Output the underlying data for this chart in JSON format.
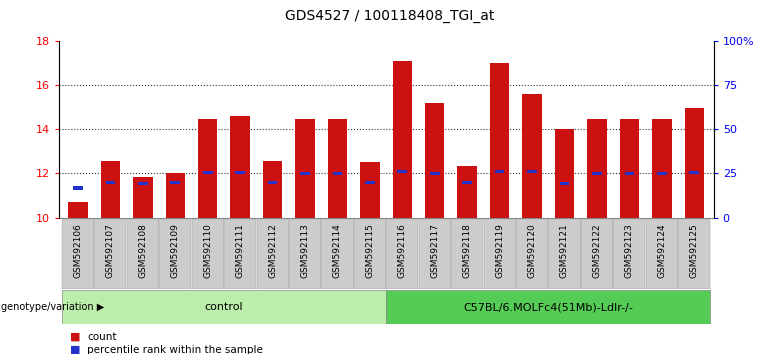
{
  "title": "GDS4527 / 100118408_TGI_at",
  "samples": [
    "GSM592106",
    "GSM592107",
    "GSM592108",
    "GSM592109",
    "GSM592110",
    "GSM592111",
    "GSM592112",
    "GSM592113",
    "GSM592114",
    "GSM592115",
    "GSM592116",
    "GSM592117",
    "GSM592118",
    "GSM592119",
    "GSM592120",
    "GSM592121",
    "GSM592122",
    "GSM592123",
    "GSM592124",
    "GSM592125"
  ],
  "red_values": [
    10.7,
    12.55,
    11.85,
    12.0,
    14.45,
    14.6,
    12.55,
    14.45,
    14.45,
    12.5,
    17.1,
    15.2,
    12.35,
    17.0,
    15.6,
    14.0,
    14.45,
    14.45,
    14.45,
    14.95
  ],
  "blue_values": [
    11.35,
    11.6,
    11.55,
    11.6,
    12.05,
    12.05,
    11.6,
    12.0,
    12.0,
    11.6,
    12.1,
    12.0,
    11.6,
    12.1,
    12.1,
    11.55,
    12.0,
    12.0,
    12.0,
    12.05
  ],
  "ymin": 10,
  "ymax": 18,
  "yticks_left": [
    10,
    12,
    14,
    16,
    18
  ],
  "yticks_right": [
    0,
    25,
    50,
    75,
    100
  ],
  "yticks_right_labels": [
    "0",
    "25",
    "50",
    "75",
    "100%"
  ],
  "bar_color": "#cc1111",
  "blue_color": "#2233cc",
  "groups": [
    {
      "label": "control",
      "start": 0,
      "end": 10,
      "color": "#bbeeaa"
    },
    {
      "label": "C57BL/6.MOLFc4(51Mb)-Ldlr-/-",
      "start": 10,
      "end": 20,
      "color": "#55cc55"
    }
  ],
  "group_label_prefix": "genotype/variation",
  "legend_items": [
    {
      "label": "count",
      "color": "#cc1111"
    },
    {
      "label": "percentile rank within the sample",
      "color": "#2233cc"
    }
  ],
  "background_color": "#ffffff",
  "dotted_grid_color": "#333333",
  "dotted_grid_levels": [
    12,
    14,
    16
  ],
  "bar_width": 0.6,
  "title_fontsize": 10
}
